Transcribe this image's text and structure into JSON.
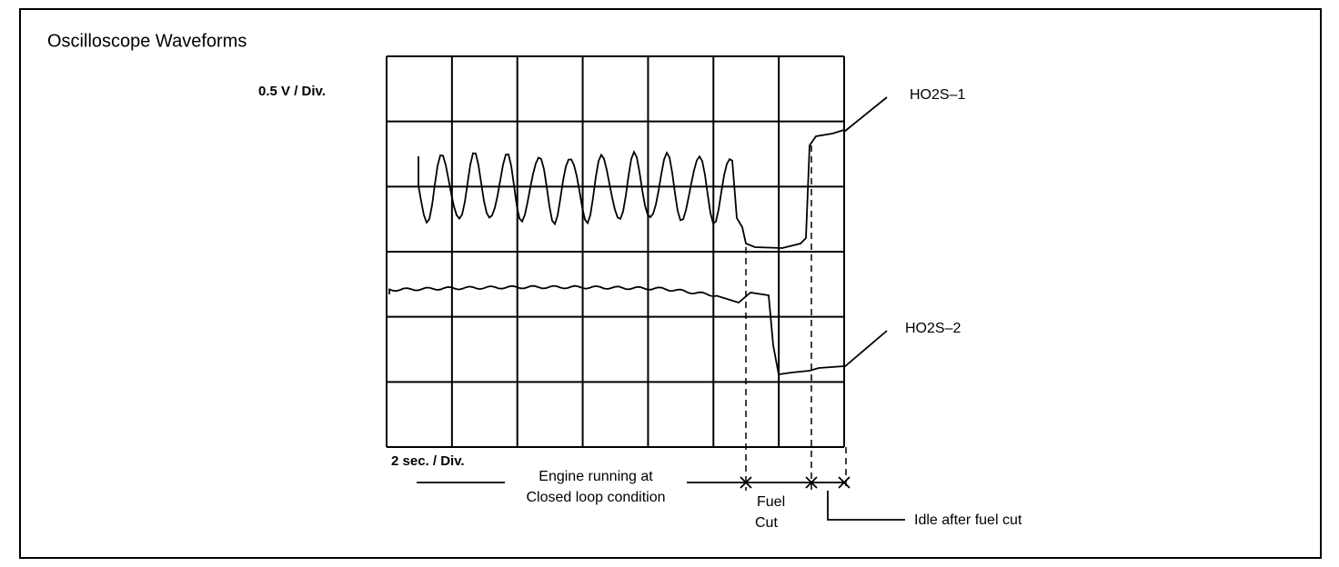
{
  "title": "Oscilloscope Waveforms",
  "vertical_scale": "0.5 V / Div.",
  "horizontal_scale": "2 sec. / Div.",
  "traces": [
    {
      "label": "HO2S–1"
    },
    {
      "label": "HO2S–2"
    }
  ],
  "phases": [
    {
      "lines": [
        "Engine running at",
        "Closed loop condition"
      ]
    },
    {
      "lines": [
        "Fuel",
        "Cut"
      ]
    },
    {
      "lines": [
        "Idle after fuel cut"
      ]
    }
  ]
}
